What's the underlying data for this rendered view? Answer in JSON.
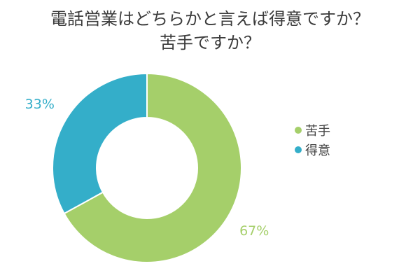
{
  "chart_data": {
    "type": "pie",
    "donut": true,
    "title": [
      "電話営業はどちらかと言えば得意ですか？",
      "苦手ですか？"
    ],
    "slices": [
      {
        "name": "苦手",
        "value": 67,
        "label": "67%",
        "color": "#a5cf6a"
      },
      {
        "name": "得意",
        "value": 33,
        "label": "33%",
        "color": "#34aec9"
      }
    ],
    "start_angle_deg": 0,
    "direction": "clockwise",
    "legend_position": "right"
  }
}
